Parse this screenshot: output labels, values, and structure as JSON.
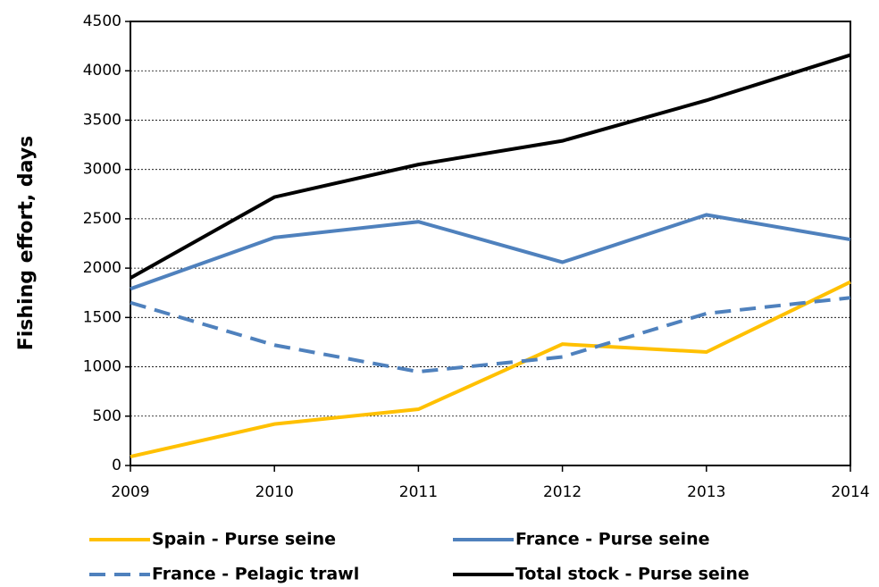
{
  "chart_data": {
    "type": "line",
    "y_label": "Fishing effort, days",
    "x": [
      2009,
      2010,
      2011,
      2012,
      2013,
      2014
    ],
    "xlim": [
      2009,
      2014
    ],
    "xticks": [
      2009,
      2010,
      2011,
      2012,
      2013,
      2014
    ],
    "ylim": [
      0,
      4500
    ],
    "yticks": [
      0,
      500,
      1000,
      1500,
      2000,
      2500,
      3000,
      3500,
      4000,
      4500
    ],
    "grid": true,
    "legend": "bottom",
    "series": [
      {
        "name": "Spain - Purse seine",
        "color": "#ffc000",
        "line_style": "solid",
        "values": [
          90,
          420,
          570,
          1230,
          1150,
          1860
        ]
      },
      {
        "name": "France - Purse seine",
        "color": "#4f81bd",
        "line_style": "solid",
        "values": [
          1790,
          2310,
          2470,
          2060,
          2540,
          2290
        ]
      },
      {
        "name": "France - Pelagic trawl",
        "color": "#4f81bd",
        "line_style": "dashed",
        "values": [
          1650,
          1220,
          950,
          1100,
          1540,
          1700
        ]
      },
      {
        "name": "Total stock - Purse seine",
        "color": "#000000",
        "line_style": "solid",
        "values": [
          1900,
          2720,
          3050,
          3290,
          3700,
          4160
        ]
      }
    ]
  }
}
